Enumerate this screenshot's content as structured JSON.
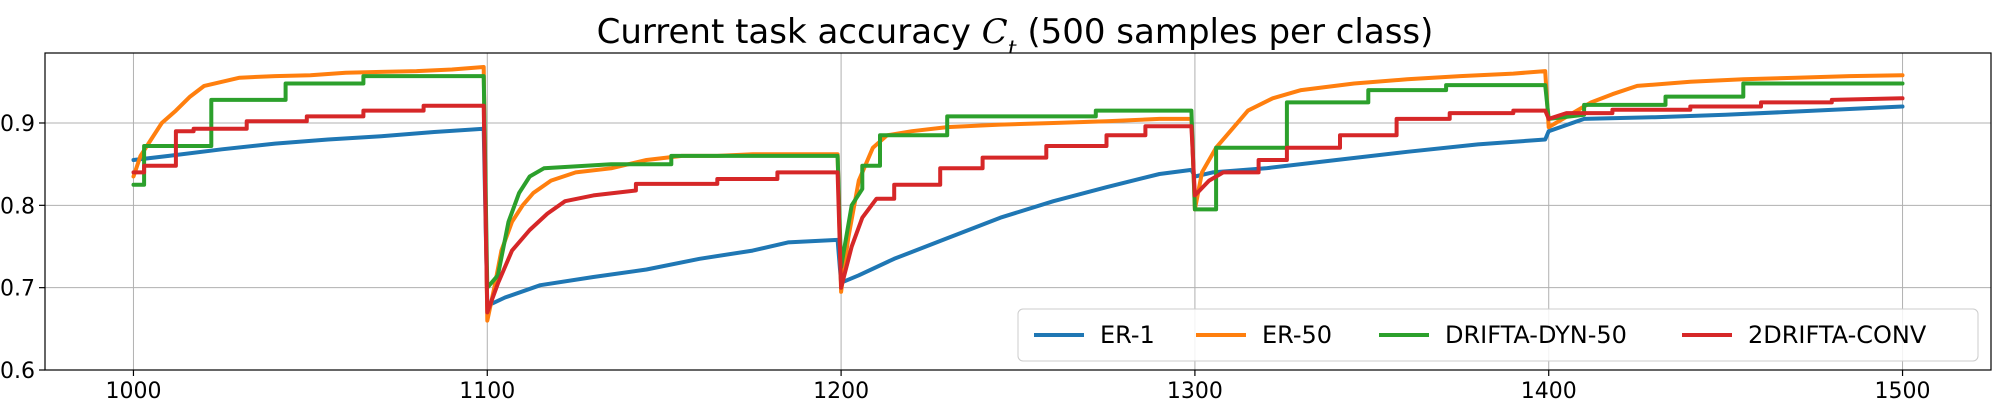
{
  "chart_data": {
    "type": "line",
    "title": "Current task accuracy ",
    "title_symbol": "C",
    "title_subscript": "t",
    "title_suffix": " (500 samples per class)",
    "xlabel": "",
    "ylabel": "",
    "xlim": [
      975,
      1525
    ],
    "ylim": [
      0.6,
      0.985
    ],
    "xticks": [
      1000,
      1100,
      1200,
      1300,
      1400,
      1500
    ],
    "yticks": [
      0.6,
      0.7,
      0.8,
      0.9
    ],
    "ytick_labels": [
      "0.6",
      "0.7",
      "0.8",
      "0.9"
    ],
    "grid": true,
    "legend": {
      "placement": "lower-right",
      "columns": 4
    },
    "series": [
      {
        "name": "ER-1",
        "color": "#1f77b4",
        "points": [
          [
            1000,
            0.855
          ],
          [
            1010,
            0.86
          ],
          [
            1025,
            0.868
          ],
          [
            1040,
            0.875
          ],
          [
            1055,
            0.88
          ],
          [
            1070,
            0.884
          ],
          [
            1085,
            0.889
          ],
          [
            1099,
            0.893
          ],
          [
            1100,
            0.678
          ],
          [
            1105,
            0.688
          ],
          [
            1115,
            0.703
          ],
          [
            1130,
            0.713
          ],
          [
            1145,
            0.722
          ],
          [
            1160,
            0.735
          ],
          [
            1175,
            0.745
          ],
          [
            1185,
            0.755
          ],
          [
            1199,
            0.758
          ],
          [
            1200,
            0.706
          ],
          [
            1205,
            0.715
          ],
          [
            1215,
            0.735
          ],
          [
            1230,
            0.76
          ],
          [
            1245,
            0.785
          ],
          [
            1260,
            0.805
          ],
          [
            1275,
            0.822
          ],
          [
            1290,
            0.838
          ],
          [
            1299,
            0.843
          ],
          [
            1300,
            0.835
          ],
          [
            1305,
            0.84
          ],
          [
            1320,
            0.845
          ],
          [
            1340,
            0.855
          ],
          [
            1360,
            0.865
          ],
          [
            1380,
            0.874
          ],
          [
            1399,
            0.88
          ],
          [
            1400,
            0.89
          ],
          [
            1410,
            0.905
          ],
          [
            1430,
            0.907
          ],
          [
            1450,
            0.91
          ],
          [
            1470,
            0.914
          ],
          [
            1485,
            0.917
          ],
          [
            1500,
            0.92
          ]
        ]
      },
      {
        "name": "ER-50",
        "color": "#ff7f0e",
        "points": [
          [
            1000,
            0.835
          ],
          [
            1002,
            0.86
          ],
          [
            1005,
            0.88
          ],
          [
            1008,
            0.9
          ],
          [
            1012,
            0.915
          ],
          [
            1016,
            0.932
          ],
          [
            1020,
            0.945
          ],
          [
            1025,
            0.95
          ],
          [
            1030,
            0.955
          ],
          [
            1040,
            0.957
          ],
          [
            1050,
            0.958
          ],
          [
            1060,
            0.961
          ],
          [
            1070,
            0.962
          ],
          [
            1080,
            0.963
          ],
          [
            1090,
            0.965
          ],
          [
            1099,
            0.968
          ],
          [
            1100,
            0.66
          ],
          [
            1102,
            0.7
          ],
          [
            1104,
            0.745
          ],
          [
            1107,
            0.78
          ],
          [
            1110,
            0.8
          ],
          [
            1113,
            0.815
          ],
          [
            1118,
            0.83
          ],
          [
            1125,
            0.84
          ],
          [
            1135,
            0.845
          ],
          [
            1145,
            0.855
          ],
          [
            1155,
            0.86
          ],
          [
            1165,
            0.86
          ],
          [
            1175,
            0.862
          ],
          [
            1185,
            0.862
          ],
          [
            1199,
            0.862
          ],
          [
            1200,
            0.695
          ],
          [
            1202,
            0.76
          ],
          [
            1205,
            0.83
          ],
          [
            1209,
            0.87
          ],
          [
            1213,
            0.885
          ],
          [
            1220,
            0.89
          ],
          [
            1230,
            0.895
          ],
          [
            1245,
            0.898
          ],
          [
            1260,
            0.9
          ],
          [
            1275,
            0.902
          ],
          [
            1290,
            0.905
          ],
          [
            1299,
            0.905
          ],
          [
            1300,
            0.795
          ],
          [
            1302,
            0.84
          ],
          [
            1306,
            0.87
          ],
          [
            1310,
            0.89
          ],
          [
            1315,
            0.915
          ],
          [
            1322,
            0.93
          ],
          [
            1330,
            0.94
          ],
          [
            1345,
            0.948
          ],
          [
            1360,
            0.953
          ],
          [
            1375,
            0.957
          ],
          [
            1390,
            0.96
          ],
          [
            1399,
            0.963
          ],
          [
            1400,
            0.895
          ],
          [
            1404,
            0.905
          ],
          [
            1408,
            0.915
          ],
          [
            1412,
            0.925
          ],
          [
            1418,
            0.935
          ],
          [
            1425,
            0.945
          ],
          [
            1440,
            0.95
          ],
          [
            1455,
            0.953
          ],
          [
            1470,
            0.955
          ],
          [
            1485,
            0.957
          ],
          [
            1500,
            0.958
          ]
        ]
      },
      {
        "name": "DRIFTA-DYN-50",
        "color": "#2ca02c",
        "points": [
          [
            1000,
            0.825
          ],
          [
            1003,
            0.825
          ],
          [
            1003,
            0.872
          ],
          [
            1022,
            0.872
          ],
          [
            1022,
            0.928
          ],
          [
            1043,
            0.928
          ],
          [
            1043,
            0.948
          ],
          [
            1065,
            0.948
          ],
          [
            1065,
            0.957
          ],
          [
            1099,
            0.957
          ],
          [
            1100,
            0.7
          ],
          [
            1103,
            0.715
          ],
          [
            1106,
            0.78
          ],
          [
            1109,
            0.815
          ],
          [
            1112,
            0.835
          ],
          [
            1116,
            0.845
          ],
          [
            1135,
            0.85
          ],
          [
            1152,
            0.85
          ],
          [
            1152,
            0.86
          ],
          [
            1199,
            0.86
          ],
          [
            1200,
            0.725
          ],
          [
            1203,
            0.8
          ],
          [
            1206,
            0.82
          ],
          [
            1206,
            0.848
          ],
          [
            1211,
            0.848
          ],
          [
            1211,
            0.885
          ],
          [
            1230,
            0.885
          ],
          [
            1230,
            0.908
          ],
          [
            1272,
            0.908
          ],
          [
            1272,
            0.915
          ],
          [
            1299,
            0.915
          ],
          [
            1300,
            0.795
          ],
          [
            1306,
            0.795
          ],
          [
            1306,
            0.87
          ],
          [
            1326,
            0.87
          ],
          [
            1326,
            0.925
          ],
          [
            1349,
            0.925
          ],
          [
            1349,
            0.94
          ],
          [
            1371,
            0.94
          ],
          [
            1371,
            0.946
          ],
          [
            1399,
            0.946
          ],
          [
            1400,
            0.905
          ],
          [
            1410,
            0.91
          ],
          [
            1410,
            0.922
          ],
          [
            1433,
            0.922
          ],
          [
            1433,
            0.932
          ],
          [
            1455,
            0.932
          ],
          [
            1455,
            0.948
          ],
          [
            1500,
            0.948
          ]
        ]
      },
      {
        "name": "2DRIFTA-CONV",
        "color": "#d62728",
        "points": [
          [
            1000,
            0.84
          ],
          [
            1003,
            0.84
          ],
          [
            1003,
            0.848
          ],
          [
            1012,
            0.848
          ],
          [
            1012,
            0.89
          ],
          [
            1017,
            0.89
          ],
          [
            1017,
            0.893
          ],
          [
            1032,
            0.893
          ],
          [
            1032,
            0.902
          ],
          [
            1049,
            0.902
          ],
          [
            1049,
            0.908
          ],
          [
            1065,
            0.908
          ],
          [
            1065,
            0.915
          ],
          [
            1082,
            0.915
          ],
          [
            1082,
            0.921
          ],
          [
            1099,
            0.921
          ],
          [
            1100,
            0.67
          ],
          [
            1103,
            0.705
          ],
          [
            1107,
            0.745
          ],
          [
            1112,
            0.77
          ],
          [
            1117,
            0.79
          ],
          [
            1122,
            0.805
          ],
          [
            1130,
            0.812
          ],
          [
            1142,
            0.818
          ],
          [
            1142,
            0.826
          ],
          [
            1165,
            0.826
          ],
          [
            1165,
            0.832
          ],
          [
            1182,
            0.832
          ],
          [
            1182,
            0.84
          ],
          [
            1199,
            0.84
          ],
          [
            1200,
            0.7
          ],
          [
            1203,
            0.75
          ],
          [
            1206,
            0.785
          ],
          [
            1210,
            0.808
          ],
          [
            1215,
            0.808
          ],
          [
            1215,
            0.825
          ],
          [
            1228,
            0.825
          ],
          [
            1228,
            0.845
          ],
          [
            1240,
            0.845
          ],
          [
            1240,
            0.858
          ],
          [
            1258,
            0.858
          ],
          [
            1258,
            0.872
          ],
          [
            1275,
            0.872
          ],
          [
            1275,
            0.885
          ],
          [
            1286,
            0.885
          ],
          [
            1286,
            0.896
          ],
          [
            1299,
            0.896
          ],
          [
            1300,
            0.812
          ],
          [
            1304,
            0.83
          ],
          [
            1308,
            0.84
          ],
          [
            1318,
            0.84
          ],
          [
            1318,
            0.855
          ],
          [
            1326,
            0.855
          ],
          [
            1326,
            0.87
          ],
          [
            1341,
            0.87
          ],
          [
            1341,
            0.885
          ],
          [
            1357,
            0.885
          ],
          [
            1357,
            0.905
          ],
          [
            1372,
            0.905
          ],
          [
            1372,
            0.912
          ],
          [
            1390,
            0.912
          ],
          [
            1390,
            0.915
          ],
          [
            1399,
            0.915
          ],
          [
            1400,
            0.905
          ],
          [
            1405,
            0.912
          ],
          [
            1418,
            0.912
          ],
          [
            1418,
            0.916
          ],
          [
            1440,
            0.916
          ],
          [
            1440,
            0.92
          ],
          [
            1460,
            0.92
          ],
          [
            1460,
            0.925
          ],
          [
            1480,
            0.925
          ],
          [
            1480,
            0.928
          ],
          [
            1500,
            0.93
          ]
        ]
      }
    ]
  }
}
